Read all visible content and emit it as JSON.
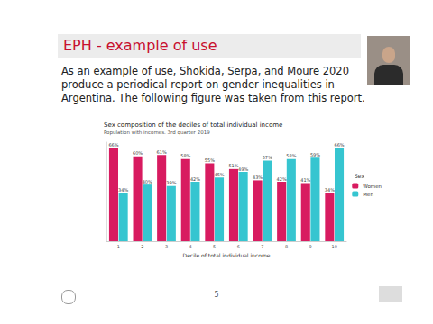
{
  "slide": {
    "title": "EPH - example of use",
    "text": "As an example of use, Shokida, Serpa, and Moure 2020 produce a periodical report on gender inequalities in Argentina. The following figure was taken from this report.",
    "page_number": "5"
  },
  "chart_data": {
    "type": "bar",
    "title": "Sex composition of the deciles of total individual income",
    "subtitle": "Population with incomes. 3rd quarter 2019",
    "x_label": "Decile of total individual income",
    "legend_title": "Sex",
    "categories": [
      "1",
      "2",
      "3",
      "4",
      "5",
      "6",
      "7",
      "8",
      "9",
      "10"
    ],
    "series": [
      {
        "name": "Women",
        "color": "#d81b60",
        "values": [
          66,
          60,
          61,
          58,
          55,
          51,
          43,
          42,
          41,
          34
        ],
        "value_labels": [
          "66%",
          "60%",
          "61%",
          "58%",
          "55%",
          "51%",
          "43%",
          "42%",
          "41%",
          "34%"
        ]
      },
      {
        "name": "Men",
        "color": "#36c5d0",
        "values": [
          34,
          40,
          39,
          42,
          45,
          49,
          57,
          58,
          59,
          66
        ],
        "value_labels": [
          "34%",
          "40%",
          "39%",
          "42%",
          "45%",
          "49%",
          "57%",
          "58%",
          "59%",
          "66%"
        ]
      }
    ],
    "ylim": [
      0,
      70
    ],
    "grid": false,
    "legend": "right",
    "data_labels": true,
    "tick_labels": "x"
  }
}
